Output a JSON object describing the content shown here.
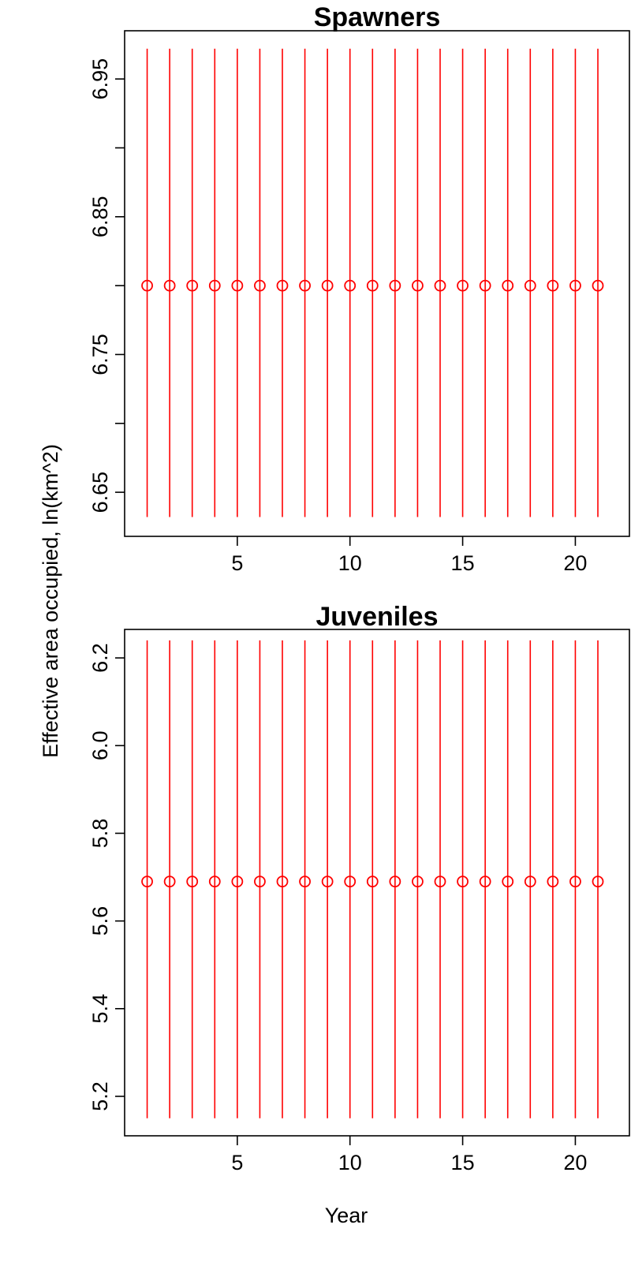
{
  "figure": {
    "ylabel": "Effective area occupied, ln(km^2)",
    "xlabel": "Year"
  },
  "chart_data": [
    {
      "type": "scatter",
      "title": "Spawners",
      "xlabel": "Year",
      "ylabel": "Effective area occupied, ln(km^2)",
      "x": [
        1,
        2,
        3,
        4,
        5,
        6,
        7,
        8,
        9,
        10,
        11,
        12,
        13,
        14,
        15,
        16,
        17,
        18,
        19,
        20,
        21
      ],
      "y": [
        6.8,
        6.8,
        6.8,
        6.8,
        6.8,
        6.8,
        6.8,
        6.8,
        6.8,
        6.8,
        6.8,
        6.8,
        6.8,
        6.8,
        6.8,
        6.8,
        6.8,
        6.8,
        6.8,
        6.8,
        6.8
      ],
      "error_lower": 6.632,
      "error_upper": 6.972,
      "xlim": [
        0,
        22.4
      ],
      "ylim": [
        6.618,
        6.985
      ],
      "xticks": [
        5,
        10,
        15,
        20
      ],
      "yticks": [
        6.65,
        6.7,
        6.75,
        6.8,
        6.85,
        6.9,
        6.95
      ],
      "ytick_labels": [
        "6.65",
        "",
        "6.75",
        "",
        "6.85",
        "",
        "6.95"
      ],
      "color": "#ff0000",
      "marker": "open-circle",
      "grid": false,
      "legend": "none"
    },
    {
      "type": "scatter",
      "title": "Juveniles",
      "xlabel": "Year",
      "ylabel": "Effective area occupied, ln(km^2)",
      "x": [
        1,
        2,
        3,
        4,
        5,
        6,
        7,
        8,
        9,
        10,
        11,
        12,
        13,
        14,
        15,
        16,
        17,
        18,
        19,
        20,
        21
      ],
      "y": [
        5.69,
        5.69,
        5.69,
        5.69,
        5.69,
        5.69,
        5.69,
        5.69,
        5.69,
        5.69,
        5.69,
        5.69,
        5.69,
        5.69,
        5.69,
        5.69,
        5.69,
        5.69,
        5.69,
        5.69,
        5.69
      ],
      "error_lower": 5.15,
      "error_upper": 6.24,
      "xlim": [
        0,
        22.4
      ],
      "ylim": [
        5.11,
        6.265
      ],
      "xticks": [
        5,
        10,
        15,
        20
      ],
      "yticks": [
        5.2,
        5.4,
        5.6,
        5.8,
        6.0,
        6.2
      ],
      "ytick_labels": [
        "5.2",
        "5.4",
        "5.6",
        "5.8",
        "6.0",
        "6.2"
      ],
      "color": "#ff0000",
      "marker": "open-circle",
      "grid": false,
      "legend": "none"
    }
  ]
}
